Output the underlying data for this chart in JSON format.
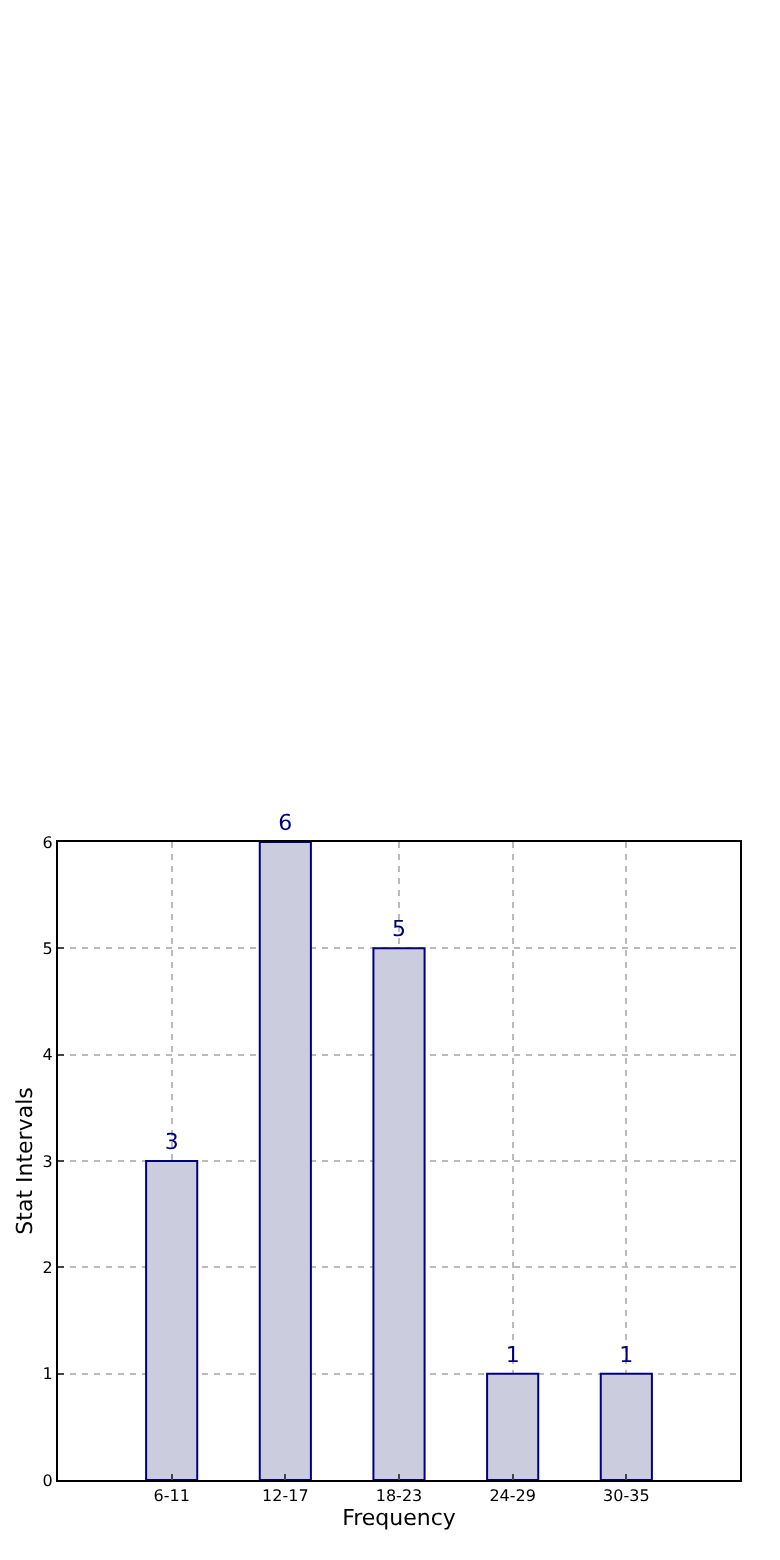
{
  "chart_data": {
    "type": "bar",
    "xlabel": "Frequency",
    "ylabel": "Stat Intervals",
    "categories": [
      "6-11",
      "12-17",
      "18-23",
      "24-29",
      "30-35"
    ],
    "values": [
      3,
      6,
      5,
      1,
      1
    ],
    "color": "#ccccdf",
    "ylim": [
      0,
      6
    ],
    "yticks": [
      0,
      1,
      2,
      3,
      4,
      5,
      6
    ],
    "grid": true,
    "data_labels": true
  }
}
